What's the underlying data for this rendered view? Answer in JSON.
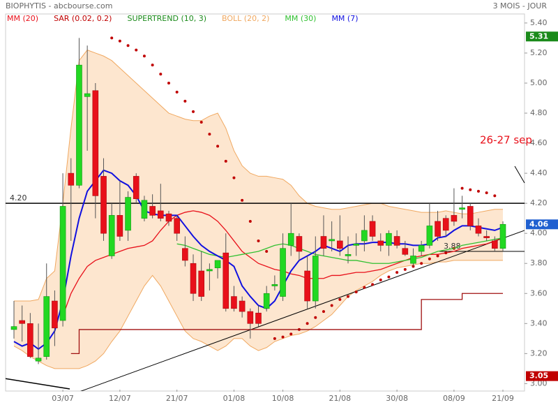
{
  "chart_data": {
    "type": "candlestick",
    "title": "BIOPHYTIS - abcbourse.com",
    "period": "3 MOIS - JOUR",
    "categories": [
      null,
      null,
      null,
      null,
      null,
      null,
      "03/07",
      null,
      null,
      null,
      null,
      null,
      null,
      "12/07",
      null,
      null,
      null,
      null,
      null,
      null,
      "21/07",
      null,
      null,
      null,
      null,
      null,
      null,
      "01/08",
      null,
      null,
      null,
      null,
      null,
      "10/08",
      null,
      null,
      null,
      null,
      null,
      null,
      "21/08",
      null,
      null,
      null,
      null,
      null,
      null,
      "30/08",
      null,
      null,
      null,
      null,
      null,
      null,
      "08/09",
      null,
      null,
      null,
      null,
      null,
      "21/09"
    ],
    "candles": {
      "up_color": "#22d822",
      "down_color": "#e8101a",
      "open": [
        3.36,
        3.42,
        3.4,
        3.15,
        3.18,
        3.55,
        3.42,
        4.4,
        4.32,
        4.91,
        4.95,
        4.38,
        3.85,
        4.12,
        4.02,
        4.38,
        4.1,
        4.18,
        4.15,
        4.13,
        4.1,
        3.9,
        3.8,
        3.75,
        3.75,
        3.77,
        3.87,
        3.58,
        3.55,
        3.48,
        3.47,
        3.5,
        3.65,
        3.58,
        3.92,
        3.98,
        3.75,
        3.55,
        3.98,
        3.95,
        3.95,
        3.85,
        3.92,
        3.95,
        4.08,
        3.95,
        3.92,
        3.98,
        3.9,
        3.8,
        3.88,
        3.92,
        4.08,
        4.1,
        4.12,
        4.16,
        4.18,
        4.05,
        3.98,
        3.95,
        3.9
      ],
      "high": [
        3.55,
        3.52,
        3.47,
        3.4,
        3.8,
        3.62,
        4.4,
        4.5,
        5.3,
        5.25,
        5.0,
        4.5,
        4.2,
        4.35,
        4.28,
        4.4,
        4.25,
        4.26,
        4.33,
        4.15,
        4.12,
        3.98,
        3.86,
        3.88,
        3.8,
        3.82,
        4.0,
        3.65,
        3.58,
        3.5,
        3.52,
        3.65,
        3.72,
        4.0,
        4.2,
        4.0,
        3.85,
        3.98,
        4.12,
        4.08,
        4.12,
        3.98,
        4.0,
        4.12,
        4.12,
        4.0,
        4.02,
        4.02,
        3.95,
        3.9,
        3.95,
        4.2,
        4.15,
        4.12,
        4.3,
        4.25,
        4.2,
        4.1,
        4.02,
        3.98,
        4.08
      ],
      "low": [
        3.3,
        3.28,
        3.17,
        3.13,
        3.16,
        3.25,
        3.38,
        3.95,
        4.3,
        4.55,
        4.1,
        3.95,
        3.83,
        3.95,
        3.95,
        4.2,
        4.08,
        4.1,
        4.08,
        4.05,
        3.95,
        3.78,
        3.55,
        3.55,
        3.62,
        3.7,
        3.48,
        3.48,
        3.44,
        3.3,
        3.38,
        3.48,
        3.62,
        3.55,
        3.85,
        3.82,
        3.5,
        3.5,
        3.85,
        3.88,
        3.85,
        3.8,
        3.85,
        3.88,
        3.95,
        3.88,
        3.85,
        3.9,
        3.85,
        3.78,
        3.85,
        3.9,
        3.95,
        3.98,
        4.05,
        4.1,
        4.02,
        3.98,
        3.95,
        3.88,
        3.88
      ],
      "close": [
        3.38,
        3.4,
        3.18,
        3.17,
        3.58,
        3.37,
        4.18,
        4.32,
        5.12,
        4.93,
        4.25,
        4.0,
        4.12,
        3.98,
        4.24,
        4.23,
        4.22,
        4.12,
        4.1,
        4.08,
        4.0,
        3.82,
        3.6,
        3.58,
        3.76,
        3.82,
        3.5,
        3.5,
        3.48,
        3.4,
        3.4,
        3.6,
        3.66,
        3.9,
        4.0,
        3.88,
        3.55,
        3.85,
        3.9,
        3.96,
        3.9,
        3.86,
        3.93,
        4.02,
        3.98,
        3.92,
        4.0,
        3.92,
        3.86,
        3.85,
        3.92,
        4.05,
        3.98,
        4.02,
        4.08,
        4.17,
        4.05,
        4.0,
        3.97,
        3.9,
        4.06
      ]
    },
    "series": [
      {
        "name": "MM (20)",
        "color": "#e8101a",
        "style": "line",
        "values": [
          null,
          null,
          null,
          null,
          null,
          null,
          3.45,
          3.6,
          3.7,
          3.78,
          3.82,
          3.84,
          3.86,
          3.88,
          3.9,
          3.91,
          3.92,
          3.95,
          4.02,
          4.08,
          4.12,
          4.14,
          4.15,
          4.14,
          4.12,
          4.08,
          4.02,
          3.95,
          3.88,
          3.84,
          3.8,
          3.78,
          3.76,
          3.75,
          3.73,
          3.72,
          3.7,
          3.7,
          3.7,
          3.72,
          3.72,
          3.73,
          3.74,
          3.74,
          3.75,
          3.76,
          3.78,
          3.8,
          3.82,
          3.84,
          3.85,
          3.86,
          3.86,
          3.87,
          3.88,
          3.9,
          3.91,
          3.92,
          3.93,
          3.95,
          3.97
        ]
      },
      {
        "name": "SAR (0.02, 0.2)",
        "color": "#c00000",
        "style": "dots",
        "values": [
          null,
          null,
          null,
          null,
          null,
          null,
          null,
          null,
          null,
          null,
          null,
          null,
          5.3,
          5.28,
          5.25,
          5.22,
          5.18,
          5.12,
          5.06,
          5.0,
          4.94,
          4.88,
          4.81,
          4.74,
          4.66,
          4.58,
          4.48,
          4.37,
          4.22,
          4.08,
          3.95,
          3.88,
          3.3,
          3.31,
          3.33,
          3.36,
          3.4,
          3.44,
          3.48,
          3.52,
          3.56,
          3.58,
          3.61,
          3.64,
          3.66,
          3.69,
          3.71,
          3.74,
          3.76,
          3.78,
          3.8,
          3.83,
          3.85,
          3.87,
          3.9,
          4.3,
          4.29,
          4.28,
          4.27,
          4.25,
          null
        ]
      },
      {
        "name": "SUPERTREND (10, 3)",
        "color": "#a01010",
        "style": "step",
        "legend_color": "#1a8a1a",
        "values": [
          null,
          null,
          null,
          null,
          null,
          null,
          null,
          3.2,
          3.36,
          3.36,
          3.36,
          3.36,
          3.36,
          3.36,
          3.36,
          3.36,
          3.36,
          3.36,
          3.36,
          3.36,
          3.36,
          3.36,
          3.36,
          3.36,
          3.36,
          3.36,
          3.36,
          3.36,
          3.36,
          3.36,
          3.36,
          3.36,
          3.36,
          3.36,
          3.36,
          3.36,
          3.36,
          3.36,
          3.36,
          3.36,
          3.36,
          3.36,
          3.36,
          3.36,
          3.36,
          3.36,
          3.36,
          3.36,
          3.36,
          3.36,
          3.56,
          3.56,
          3.56,
          3.56,
          3.56,
          3.6,
          3.6,
          3.6,
          3.6,
          3.6,
          3.6
        ]
      },
      {
        "name": "BOLL (20, 2)",
        "color": "#f0a860",
        "style": "band",
        "upper": [
          3.55,
          3.55,
          3.55,
          3.56,
          3.7,
          3.75,
          4.2,
          4.7,
          5.15,
          5.22,
          5.2,
          5.18,
          5.15,
          5.1,
          5.05,
          5.0,
          4.95,
          4.9,
          4.85,
          4.8,
          4.78,
          4.76,
          4.75,
          4.75,
          4.78,
          4.8,
          4.7,
          4.55,
          4.45,
          4.4,
          4.38,
          4.38,
          4.37,
          4.36,
          4.32,
          4.25,
          4.2,
          4.18,
          4.17,
          4.16,
          4.16,
          4.17,
          4.18,
          4.19,
          4.2,
          4.2,
          4.18,
          4.17,
          4.16,
          4.15,
          4.14,
          4.14,
          4.14,
          4.15,
          4.14,
          4.13,
          4.13,
          4.14,
          4.15,
          4.16,
          4.16
        ],
        "lower": [
          3.25,
          3.22,
          3.18,
          3.15,
          3.12,
          3.1,
          3.1,
          3.1,
          3.1,
          3.12,
          3.15,
          3.2,
          3.28,
          3.35,
          3.45,
          3.55,
          3.65,
          3.72,
          3.65,
          3.55,
          3.45,
          3.35,
          3.3,
          3.28,
          3.25,
          3.22,
          3.25,
          3.3,
          3.3,
          3.25,
          3.22,
          3.24,
          3.28,
          3.3,
          3.32,
          3.33,
          3.35,
          3.38,
          3.42,
          3.46,
          3.52,
          3.58,
          3.62,
          3.65,
          3.68,
          3.72,
          3.75,
          3.77,
          3.78,
          3.79,
          3.8,
          3.8,
          3.81,
          3.81,
          3.82,
          3.82,
          3.82,
          3.82,
          3.82,
          3.82,
          3.82
        ]
      },
      {
        "name": "MM (30)",
        "color": "#30c030",
        "style": "line",
        "values": [
          null,
          null,
          null,
          null,
          null,
          null,
          null,
          null,
          null,
          null,
          null,
          null,
          null,
          null,
          null,
          null,
          null,
          null,
          null,
          null,
          3.93,
          3.92,
          3.9,
          3.88,
          3.86,
          3.85,
          3.84,
          3.85,
          3.86,
          3.87,
          3.88,
          3.9,
          3.92,
          3.93,
          3.92,
          3.9,
          3.88,
          3.86,
          3.85,
          3.84,
          3.83,
          3.82,
          3.82,
          3.81,
          3.8,
          3.8,
          3.8,
          3.81,
          3.82,
          3.83,
          3.84,
          3.86,
          3.88,
          3.89,
          3.9,
          3.92,
          3.93,
          3.94,
          3.95,
          3.96,
          3.97
        ]
      },
      {
        "name": "MM (7)",
        "color": "#1010e0",
        "style": "line",
        "values": [
          3.28,
          3.25,
          3.27,
          3.23,
          3.27,
          3.35,
          3.55,
          3.85,
          4.1,
          4.28,
          4.35,
          4.42,
          4.4,
          4.35,
          4.32,
          4.25,
          4.15,
          4.13,
          4.12,
          4.12,
          4.12,
          4.05,
          3.98,
          3.92,
          3.88,
          3.85,
          3.82,
          3.78,
          3.65,
          3.58,
          3.52,
          3.5,
          3.55,
          3.65,
          3.75,
          3.82,
          3.85,
          3.88,
          3.92,
          3.9,
          3.88,
          3.92,
          3.93,
          3.93,
          3.94,
          3.94,
          3.94,
          3.93,
          3.93,
          3.92,
          3.92,
          3.93,
          3.97,
          3.98,
          4.02,
          4.05,
          4.05,
          4.04,
          4.03,
          4.02,
          4.04
        ]
      }
    ],
    "levels": [
      {
        "value": 4.2,
        "label": "4.20"
      },
      {
        "value": 3.88,
        "label": "3.88"
      }
    ],
    "badges": [
      {
        "value": 5.31,
        "label": "5.31",
        "color": "#1a8a1a"
      },
      {
        "value": 4.06,
        "label": "4.06",
        "color": "#2060d0"
      },
      {
        "value": 3.05,
        "label": "3.05",
        "color": "#c00000"
      }
    ],
    "annotation": {
      "text": "26-27 sep",
      "value": 4.62
    },
    "ylim": [
      2.96,
      5.46
    ],
    "yticks": [
      {
        "value": 3.0,
        "label": "3.00"
      },
      {
        "value": 3.2,
        "label": "3.20"
      },
      {
        "value": 3.4,
        "label": "3.40"
      },
      {
        "value": 3.6,
        "label": "3.60"
      },
      {
        "value": 3.8,
        "label": "3.80"
      },
      {
        "value": 4.0,
        "label": "4.00"
      },
      {
        "value": 4.2,
        "label": "4.20"
      },
      {
        "value": 4.4,
        "label": "4.40"
      },
      {
        "value": 4.6,
        "label": "4.60"
      },
      {
        "value": 4.8,
        "label": "4.80"
      },
      {
        "value": 5.0,
        "label": "5.00"
      },
      {
        "value": 5.2,
        "label": "5.20"
      },
      {
        "value": 5.4,
        "label": "5.40"
      }
    ]
  }
}
